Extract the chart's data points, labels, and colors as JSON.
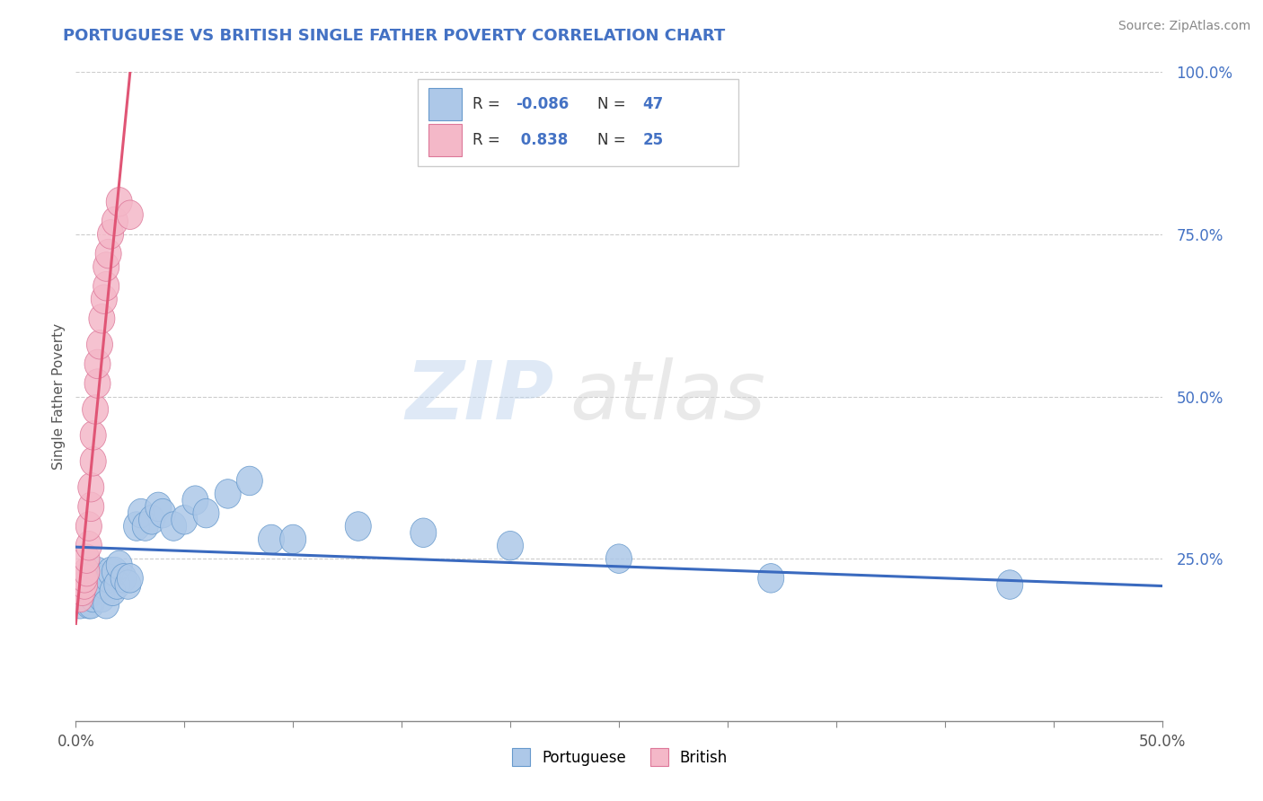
{
  "title": "PORTUGUESE VS BRITISH SINGLE FATHER POVERTY CORRELATION CHART",
  "source": "Source: ZipAtlas.com",
  "ylabel": "Single Father Poverty",
  "xlim": [
    0.0,
    0.5
  ],
  "ylim": [
    0.0,
    1.0
  ],
  "blue_color": "#adc8e8",
  "blue_edge_color": "#6699cc",
  "pink_color": "#f4b8c8",
  "pink_edge_color": "#dd7799",
  "blue_line_color": "#3a6abf",
  "pink_line_color": "#e05575",
  "title_color": "#4472c4",
  "r_blue": -0.086,
  "r_pink": 0.838,
  "n_blue": 47,
  "n_pink": 25,
  "portuguese_x": [
    0.002,
    0.004,
    0.004,
    0.005,
    0.005,
    0.006,
    0.006,
    0.007,
    0.007,
    0.008,
    0.008,
    0.009,
    0.01,
    0.01,
    0.011,
    0.012,
    0.013,
    0.014,
    0.015,
    0.016,
    0.017,
    0.018,
    0.019,
    0.02,
    0.022,
    0.024,
    0.025,
    0.028,
    0.03,
    0.032,
    0.035,
    0.038,
    0.04,
    0.045,
    0.05,
    0.055,
    0.06,
    0.07,
    0.08,
    0.09,
    0.1,
    0.13,
    0.16,
    0.2,
    0.25,
    0.32,
    0.43
  ],
  "portuguese_y": [
    0.18,
    0.19,
    0.2,
    0.19,
    0.21,
    0.18,
    0.2,
    0.18,
    0.22,
    0.19,
    0.2,
    0.22,
    0.21,
    0.23,
    0.22,
    0.19,
    0.21,
    0.18,
    0.22,
    0.23,
    0.2,
    0.23,
    0.21,
    0.24,
    0.22,
    0.21,
    0.22,
    0.3,
    0.32,
    0.3,
    0.31,
    0.33,
    0.32,
    0.3,
    0.31,
    0.34,
    0.32,
    0.35,
    0.37,
    0.28,
    0.28,
    0.3,
    0.29,
    0.27,
    0.25,
    0.22,
    0.21
  ],
  "british_x": [
    0.002,
    0.003,
    0.004,
    0.004,
    0.005,
    0.005,
    0.006,
    0.006,
    0.007,
    0.007,
    0.008,
    0.008,
    0.009,
    0.01,
    0.01,
    0.011,
    0.012,
    0.013,
    0.014,
    0.014,
    0.015,
    0.016,
    0.018,
    0.02,
    0.025
  ],
  "british_y": [
    0.19,
    0.2,
    0.21,
    0.22,
    0.23,
    0.25,
    0.27,
    0.3,
    0.33,
    0.36,
    0.4,
    0.44,
    0.48,
    0.52,
    0.55,
    0.58,
    0.62,
    0.65,
    0.67,
    0.7,
    0.72,
    0.75,
    0.77,
    0.8,
    0.78
  ]
}
